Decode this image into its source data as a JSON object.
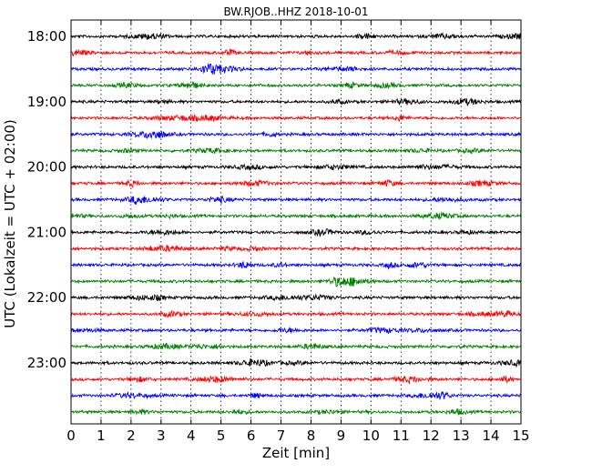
{
  "chart_data": {
    "type": "line",
    "title": "BW.RJOB..HHZ 2018-10-01",
    "xlabel": "Zeit  [min]",
    "ylabel": "UTC (Lokalzeit = UTC + 02:00)",
    "xlim": [
      0,
      15
    ],
    "x_ticks": [
      "0",
      "1",
      "2",
      "3",
      "4",
      "5",
      "6",
      "7",
      "8",
      "9",
      "10",
      "11",
      "12",
      "13",
      "14",
      "15"
    ],
    "y_tick_labels": [
      "18:00",
      "19:00",
      "20:00",
      "21:00",
      "22:00",
      "23:00"
    ],
    "trace_start_times": [
      "18:00",
      "18:15",
      "18:30",
      "18:45",
      "19:00",
      "19:15",
      "19:30",
      "19:45",
      "20:00",
      "20:15",
      "20:30",
      "20:45",
      "21:00",
      "21:15",
      "21:30",
      "21:45",
      "22:00",
      "22:15",
      "22:30",
      "22:45",
      "23:00",
      "23:15",
      "23:30",
      "23:45"
    ],
    "trace_minutes_per_line": 15,
    "trace_colors": [
      "#000000",
      "#ff0000",
      "#0000ff",
      "#008000"
    ],
    "grid": "vertical dotted at each minute",
    "series_note": "continuous seismic noise traces, no labelled amplitudes"
  }
}
